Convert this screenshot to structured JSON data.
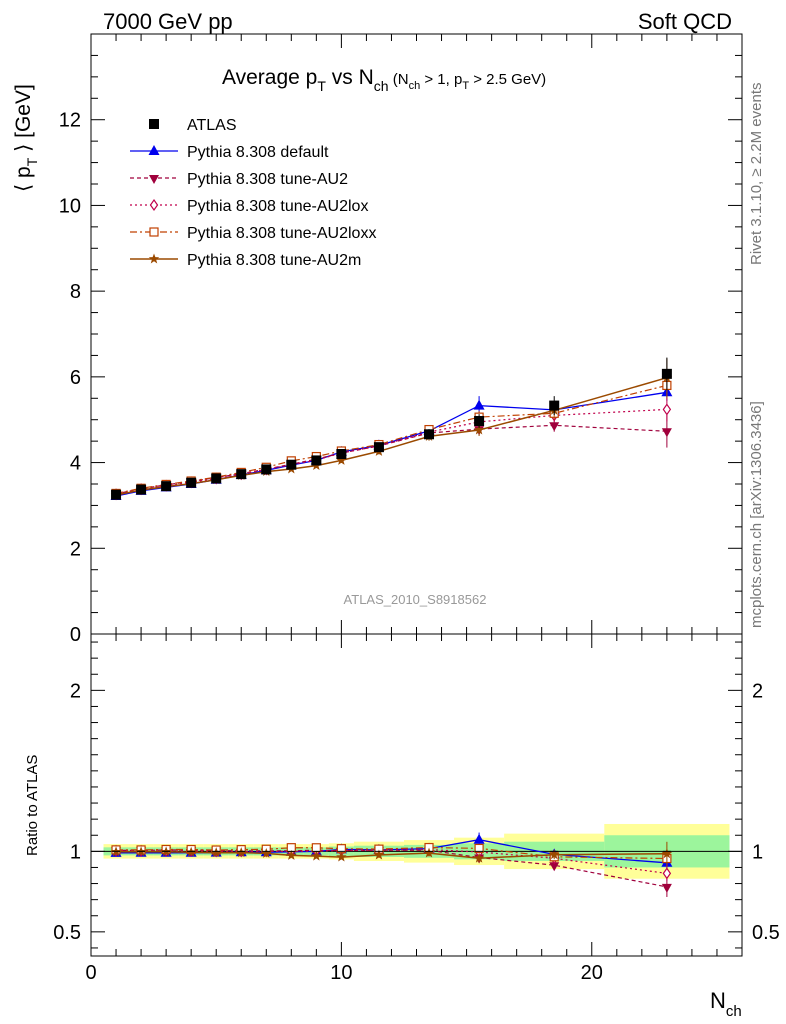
{
  "header": {
    "left": "7000 GeV pp",
    "right": "Soft QCD"
  },
  "side_labels": {
    "top": "Rivet 3.1.10, ≥ 2.2M events",
    "bottom": "mcplots.cern.ch [arXiv:1306.3436]"
  },
  "watermark": "ATLAS_2010_S8918562",
  "colors": {
    "atlas": "#000000",
    "default": "#0000ee",
    "au2": "#a0003c",
    "au2lox": "#c0004c",
    "au2loxx": "#c04000",
    "au2m": "#9b4a00",
    "band_inner": "#9cf59c",
    "band_outer": "#ffff99"
  },
  "chart_data": [
    {
      "type": "line",
      "title": {
        "main": "Average p",
        "main_sub": "T",
        "vs": " vs N",
        "vs_sub": "ch",
        "cut_open": " (N",
        "cut_sub1": "ch",
        "cut_mid": " > 1, p",
        "cut_sub2": "T",
        "cut_close": " > 2.5 GeV)"
      },
      "ylabel": {
        "open": "⟨ p",
        "sub": "T",
        "close": " ⟩ [GeV]"
      },
      "xlabel": {
        "main": "N",
        "sub": "ch"
      },
      "xlim": [
        0,
        26
      ],
      "ylim": [
        0,
        14
      ],
      "xticks": [
        "0",
        "10",
        "20"
      ],
      "yticks": [
        "0",
        "2",
        "4",
        "6",
        "8",
        "10",
        "12"
      ],
      "x": [
        1,
        2,
        3,
        4,
        5,
        6,
        7,
        8,
        9,
        10,
        11.5,
        13.5,
        15.5,
        18.5,
        23
      ],
      "series": [
        {
          "key": "atlas",
          "name": "ATLAS",
          "marker": "square-filled",
          "values": [
            3.25,
            3.37,
            3.45,
            3.53,
            3.63,
            3.73,
            3.84,
            3.95,
            4.05,
            4.2,
            4.36,
            4.66,
            4.97,
            5.33,
            6.07
          ],
          "errors": [
            0.04,
            0.04,
            0.04,
            0.04,
            0.04,
            0.05,
            0.05,
            0.06,
            0.07,
            0.08,
            0.09,
            0.12,
            0.16,
            0.22,
            0.38
          ]
        },
        {
          "key": "default",
          "name": "Pythia 8.308 default",
          "marker": "triangle-up-filled",
          "values": [
            3.22,
            3.34,
            3.42,
            3.5,
            3.6,
            3.71,
            3.82,
            3.94,
            4.05,
            4.25,
            4.4,
            4.74,
            5.33,
            5.23,
            5.64
          ],
          "errors": [
            0.02,
            0.02,
            0.02,
            0.02,
            0.02,
            0.03,
            0.03,
            0.04,
            0.05,
            0.06,
            0.07,
            0.1,
            0.22,
            0.12,
            0.2
          ]
        },
        {
          "key": "au2",
          "name": "Pythia 8.308 tune-AU2",
          "marker": "triangle-down-filled",
          "values": [
            3.27,
            3.39,
            3.48,
            3.56,
            3.65,
            3.74,
            3.85,
            3.96,
            4.08,
            4.22,
            4.39,
            4.69,
            4.78,
            4.87,
            4.73
          ],
          "errors": [
            0.02,
            0.02,
            0.02,
            0.02,
            0.02,
            0.03,
            0.03,
            0.04,
            0.05,
            0.06,
            0.07,
            0.1,
            0.14,
            0.15,
            0.38
          ]
        },
        {
          "key": "au2lox",
          "name": "Pythia 8.308 tune-AU2lox",
          "marker": "diamond-open",
          "values": [
            3.26,
            3.38,
            3.46,
            3.54,
            3.63,
            3.73,
            3.84,
            3.95,
            4.06,
            4.22,
            4.39,
            4.71,
            4.95,
            5.1,
            5.24
          ],
          "errors": [
            0.02,
            0.02,
            0.02,
            0.02,
            0.02,
            0.03,
            0.03,
            0.04,
            0.05,
            0.06,
            0.07,
            0.1,
            0.14,
            0.15,
            0.28
          ]
        },
        {
          "key": "au2loxx",
          "name": "Pythia 8.308 tune-AU2loxx",
          "marker": "square-open",
          "values": [
            3.28,
            3.4,
            3.49,
            3.57,
            3.66,
            3.77,
            3.89,
            4.04,
            4.14,
            4.27,
            4.42,
            4.77,
            5.06,
            5.15,
            5.8
          ],
          "errors": [
            0.02,
            0.02,
            0.02,
            0.02,
            0.02,
            0.03,
            0.03,
            0.04,
            0.05,
            0.06,
            0.07,
            0.1,
            0.14,
            0.15,
            0.3
          ]
        },
        {
          "key": "au2m",
          "name": "Pythia 8.308 tune-AU2m",
          "marker": "star",
          "values": [
            3.24,
            3.36,
            3.44,
            3.51,
            3.6,
            3.7,
            3.79,
            3.85,
            3.93,
            4.05,
            4.26,
            4.61,
            4.76,
            5.22,
            5.98
          ],
          "errors": [
            0.02,
            0.02,
            0.02,
            0.02,
            0.02,
            0.03,
            0.03,
            0.04,
            0.05,
            0.06,
            0.07,
            0.1,
            0.14,
            0.15,
            0.45
          ]
        }
      ]
    },
    {
      "type": "line",
      "ylabel": "Ratio to ATLAS",
      "xlim": [
        0,
        26
      ],
      "ylim": [
        0.35,
        2.35
      ],
      "yticks": [
        "0.5",
        "1",
        "2"
      ],
      "bands": {
        "edges": [
          0.5,
          1.5,
          2.5,
          3.5,
          4.5,
          5.5,
          6.5,
          7.5,
          8.5,
          9.5,
          10.5,
          12.5,
          14.5,
          16.5,
          20.5,
          25.5
        ],
        "inner": [
          0.025,
          0.025,
          0.025,
          0.025,
          0.025,
          0.025,
          0.025,
          0.025,
          0.025,
          0.03,
          0.035,
          0.04,
          0.05,
          0.06,
          0.1
        ],
        "outer": [
          0.045,
          0.045,
          0.045,
          0.045,
          0.045,
          0.045,
          0.045,
          0.045,
          0.045,
          0.05,
          0.06,
          0.07,
          0.085,
          0.11,
          0.17
        ]
      }
    }
  ]
}
